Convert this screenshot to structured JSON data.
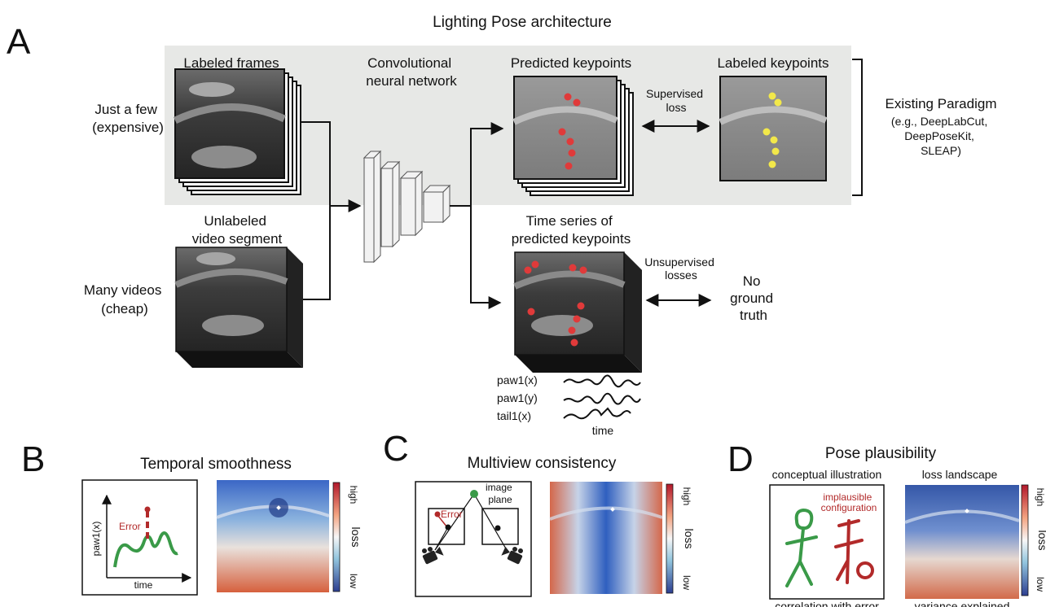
{
  "title": "Lighting Pose architecture",
  "panels": {
    "a": "A",
    "b": "B",
    "c": "C",
    "d": "D"
  },
  "panel_a": {
    "labeled_frames": "Labeled frames",
    "just_a_few": [
      "Just a few",
      "(expensive)"
    ],
    "cnn": [
      "Convolutional",
      "neural network"
    ],
    "predicted_keypoints": "Predicted keypoints",
    "supervised_loss": [
      "Supervised",
      "loss"
    ],
    "labeled_keypoints": "Labeled keypoints",
    "existing_paradigm": "Existing Paradigm",
    "paradigm_examples": [
      "(e.g., DeepLabCut,",
      "DeepPoseKit,",
      "SLEAP)"
    ],
    "unlabeled": [
      "Unlabeled",
      "video segment"
    ],
    "many_videos": [
      "Many videos",
      "(cheap)"
    ],
    "time_series": [
      "Time series of",
      "predicted keypoints"
    ],
    "unsupervised": [
      "Unsupervised",
      "losses"
    ],
    "no_ground_truth": [
      "No",
      "ground",
      "truth"
    ],
    "traces": [
      "paw1(x)",
      "paw1(y)",
      "tail1(x)"
    ],
    "time": "time"
  },
  "panel_b": {
    "title": "Temporal smoothness",
    "ylabel": "paw1(x)",
    "xlabel": "time",
    "error": "Error",
    "colorbar": {
      "high": "high",
      "low": "low",
      "label": "loss"
    }
  },
  "panel_c": {
    "title": "Multiview consistency",
    "error": "Error",
    "image_plane": [
      "image",
      "plane"
    ],
    "colorbar": {
      "high": "high",
      "low": "low",
      "label": "loss"
    }
  },
  "panel_d": {
    "title": "Pose plausibility",
    "conceptual": "conceptual illustration",
    "landscape": "loss landscape",
    "implausible": [
      "implausible",
      "configuration"
    ],
    "correlation": "correlation with error",
    "variance": "variance explained",
    "colorbar": {
      "high": "high",
      "low": "low",
      "label": "loss"
    }
  },
  "colors": {
    "panel_bg": "#e7e8e6",
    "keypoint_red": "#e03a3a",
    "keypoint_yellow": "#f2e84a",
    "trace_green": "#3a9a48",
    "error_red": "#b22a2a",
    "colorbar_high": "#b2182b",
    "colorbar_low": "#2c3e90"
  }
}
